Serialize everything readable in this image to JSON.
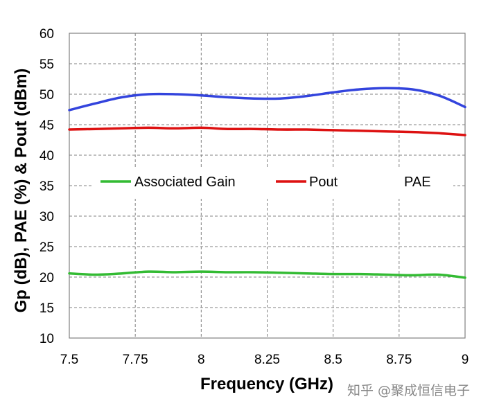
{
  "chart_data": {
    "type": "line",
    "xlabel": "Frequency (GHz)",
    "ylabel": "Gp (dB), PAE (%) & Pout (dBm)",
    "xlim": [
      7.5,
      9
    ],
    "ylim": [
      10,
      60
    ],
    "xticks": [
      "7.5",
      "7.75",
      "8",
      "8.25",
      "8.5",
      "8.75",
      "9"
    ],
    "yticks": [
      "10",
      "15",
      "20",
      "25",
      "30",
      "35",
      "40",
      "45",
      "50",
      "55",
      "60"
    ],
    "grid": true,
    "legend_position": "middle",
    "series": [
      {
        "name": "PAE",
        "color": "#3344dd",
        "x": [
          7.5,
          7.6,
          7.7,
          7.8,
          7.9,
          8.0,
          8.1,
          8.2,
          8.3,
          8.4,
          8.5,
          8.6,
          8.7,
          8.8,
          8.9,
          9.0
        ],
        "y": [
          47.4,
          48.5,
          49.5,
          50.0,
          50.0,
          49.8,
          49.5,
          49.3,
          49.3,
          49.7,
          50.3,
          50.8,
          51.0,
          50.8,
          49.8,
          47.9
        ],
        "legend_line_shown": false
      },
      {
        "name": "Pout",
        "color": "#dd1111",
        "x": [
          7.5,
          7.6,
          7.7,
          7.8,
          7.9,
          8.0,
          8.1,
          8.2,
          8.3,
          8.4,
          8.5,
          8.6,
          8.7,
          8.8,
          8.9,
          9.0
        ],
        "y": [
          44.2,
          44.3,
          44.4,
          44.5,
          44.4,
          44.5,
          44.3,
          44.3,
          44.2,
          44.2,
          44.1,
          44.0,
          43.9,
          43.8,
          43.6,
          43.3
        ],
        "legend_line_shown": true
      },
      {
        "name": "Associated Gain",
        "color": "#33bb33",
        "x": [
          7.5,
          7.6,
          7.7,
          7.8,
          7.9,
          8.0,
          8.1,
          8.2,
          8.3,
          8.4,
          8.5,
          8.6,
          8.7,
          8.8,
          8.9,
          9.0
        ],
        "y": [
          20.6,
          20.4,
          20.6,
          20.9,
          20.8,
          20.9,
          20.8,
          20.8,
          20.7,
          20.6,
          20.5,
          20.5,
          20.4,
          20.3,
          20.4,
          19.9
        ],
        "legend_line_shown": true
      }
    ],
    "legend_order": [
      "Associated Gain",
      "Pout",
      "PAE"
    ]
  },
  "watermark": "知乎 @聚成恒信电子"
}
